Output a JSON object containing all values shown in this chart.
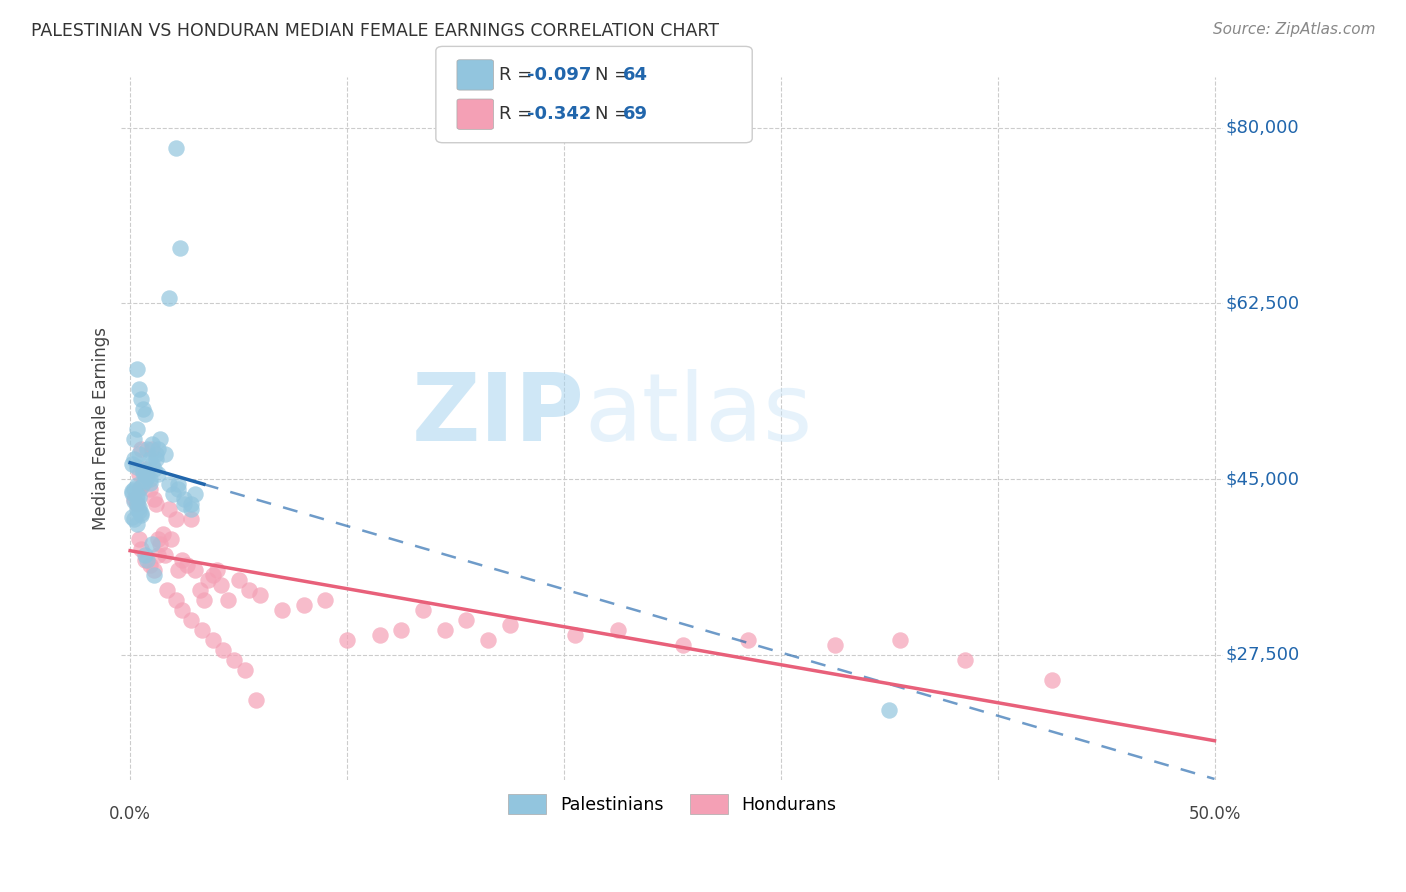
{
  "title": "PALESTINIAN VS HONDURAN MEDIAN FEMALE EARNINGS CORRELATION CHART",
  "source": "Source: ZipAtlas.com",
  "ylabel": "Median Female Earnings",
  "y_ticks": [
    27500,
    45000,
    62500,
    80000
  ],
  "y_tick_labels": [
    "$27,500",
    "$45,000",
    "$62,500",
    "$80,000"
  ],
  "y_min": 15000,
  "y_max": 85000,
  "x_min": -0.004,
  "x_max": 0.504,
  "blue_R": -0.097,
  "blue_N": 64,
  "pink_R": -0.342,
  "pink_N": 69,
  "legend_label1": "Palestinians",
  "legend_label2": "Hondurans",
  "watermark_zip": "ZIP",
  "watermark_atlas": "atlas",
  "blue_color": "#92c5de",
  "pink_color": "#f4a0b5",
  "blue_line_color": "#2166ac",
  "pink_line_color": "#e8607a",
  "blue_scatter_x": [
    0.021,
    0.023,
    0.018,
    0.003,
    0.004,
    0.005,
    0.006,
    0.007,
    0.003,
    0.002,
    0.008,
    0.004,
    0.002,
    0.001,
    0.003,
    0.006,
    0.006,
    0.007,
    0.008,
    0.009,
    0.007,
    0.009,
    0.003,
    0.005,
    0.002,
    0.001,
    0.001,
    0.003,
    0.004,
    0.003,
    0.002,
    0.003,
    0.004,
    0.003,
    0.004,
    0.005,
    0.005,
    0.001,
    0.002,
    0.003,
    0.01,
    0.012,
    0.009,
    0.01,
    0.013,
    0.014,
    0.012,
    0.011,
    0.013,
    0.016,
    0.018,
    0.022,
    0.02,
    0.025,
    0.028,
    0.025,
    0.022,
    0.03,
    0.028,
    0.35,
    0.01,
    0.007,
    0.008,
    0.011
  ],
  "blue_scatter_y": [
    78000,
    68000,
    63000,
    56000,
    54000,
    53000,
    52000,
    51500,
    50000,
    49000,
    48000,
    47500,
    47000,
    46500,
    46200,
    45800,
    45600,
    45400,
    45200,
    45000,
    44800,
    44600,
    44400,
    44200,
    44000,
    43800,
    43600,
    43400,
    43200,
    43000,
    42800,
    42500,
    42200,
    42000,
    41800,
    41600,
    41400,
    41200,
    41000,
    40500,
    48500,
    47500,
    47000,
    46500,
    48000,
    49000,
    47000,
    46000,
    45500,
    47500,
    44500,
    44000,
    43500,
    43000,
    42000,
    42500,
    44500,
    43500,
    42500,
    22000,
    38500,
    37500,
    37000,
    35500
  ],
  "pink_scatter_x": [
    0.002,
    0.003,
    0.004,
    0.004,
    0.005,
    0.006,
    0.007,
    0.008,
    0.009,
    0.01,
    0.011,
    0.012,
    0.013,
    0.014,
    0.015,
    0.016,
    0.018,
    0.019,
    0.021,
    0.022,
    0.024,
    0.026,
    0.028,
    0.03,
    0.032,
    0.034,
    0.036,
    0.038,
    0.04,
    0.042,
    0.045,
    0.05,
    0.055,
    0.06,
    0.07,
    0.08,
    0.09,
    0.1,
    0.115,
    0.125,
    0.135,
    0.145,
    0.155,
    0.165,
    0.175,
    0.205,
    0.225,
    0.255,
    0.285,
    0.325,
    0.355,
    0.385,
    0.425,
    0.004,
    0.005,
    0.007,
    0.009,
    0.011,
    0.013,
    0.017,
    0.021,
    0.024,
    0.028,
    0.033,
    0.038,
    0.043,
    0.048,
    0.053,
    0.058
  ],
  "pink_scatter_y": [
    43000,
    42500,
    44000,
    45500,
    48000,
    44500,
    46000,
    45500,
    44000,
    48000,
    43000,
    42500,
    39000,
    38500,
    39500,
    37500,
    42000,
    39000,
    41000,
    36000,
    37000,
    36500,
    41000,
    36000,
    34000,
    33000,
    35000,
    35500,
    36000,
    34500,
    33000,
    35000,
    34000,
    33500,
    32000,
    32500,
    33000,
    29000,
    29500,
    30000,
    32000,
    30000,
    31000,
    29000,
    30500,
    29500,
    30000,
    28500,
    29000,
    28500,
    29000,
    27000,
    25000,
    39000,
    38000,
    37000,
    36500,
    36000,
    37500,
    34000,
    33000,
    32000,
    31000,
    30000,
    29000,
    28000,
    27000,
    26000,
    23000
  ]
}
